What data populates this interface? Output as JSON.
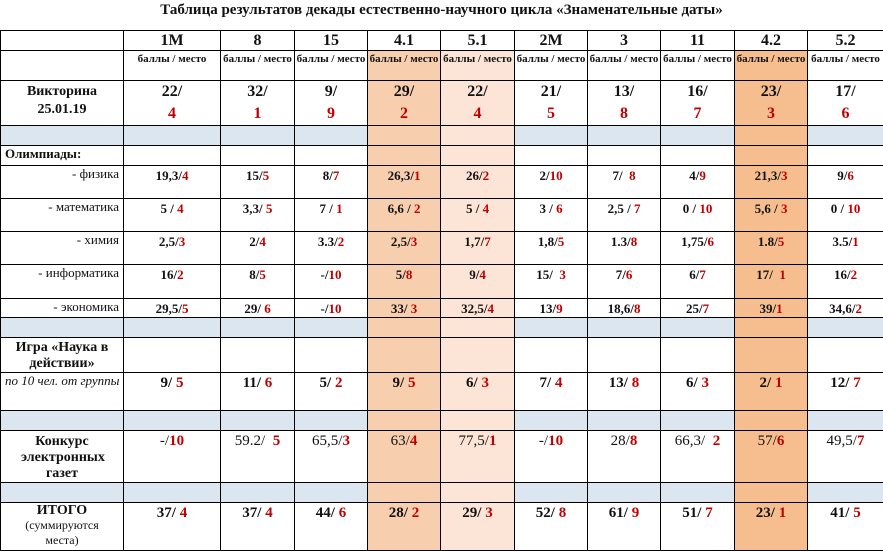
{
  "title": "Таблица результатов декады естественно-научного цикла «Знаменательные даты»",
  "columns": [
    "1М",
    "8",
    "15",
    "4.1",
    "5.1",
    "2М",
    "3",
    "11",
    "4.2",
    "5.2"
  ],
  "subheader": "баллы / место",
  "highlight_colors": {
    "4.1": "#f8cfae",
    "5.1": "#fce4d6",
    "4.2": "#f6be8e",
    "separator": "#dce6f1",
    "place": "#c00000"
  },
  "quiz": {
    "label": "Викторина 25.01.19",
    "values": [
      [
        "22/",
        "4"
      ],
      [
        "32/",
        "1"
      ],
      [
        "9/",
        "9"
      ],
      [
        "29/",
        "2"
      ],
      [
        "22/",
        "4"
      ],
      [
        "21/",
        "5"
      ],
      [
        "13/",
        "8"
      ],
      [
        "16/",
        "7"
      ],
      [
        "23/",
        "3"
      ],
      [
        "17/",
        "6"
      ]
    ]
  },
  "olympiads": {
    "label": "Олимпиады:",
    "subjects": [
      {
        "label": "- физика",
        "values": [
          [
            "19,3/",
            "4"
          ],
          [
            "15/",
            "5"
          ],
          [
            "8/",
            "7"
          ],
          [
            "26,3/",
            "1"
          ],
          [
            "26/",
            "2"
          ],
          [
            "2/",
            "10"
          ],
          [
            "7/  ",
            "8"
          ],
          [
            "4/",
            "9"
          ],
          [
            "21,3/",
            "3"
          ],
          [
            "9/",
            "6"
          ]
        ]
      },
      {
        "label": "- математика",
        "values": [
          [
            "5 / ",
            "4"
          ],
          [
            "3,3/ ",
            "5"
          ],
          [
            "7 / ",
            "1"
          ],
          [
            "6,6 / ",
            "2"
          ],
          [
            "5 / ",
            "4"
          ],
          [
            "3 / ",
            "6"
          ],
          [
            "2,5 / ",
            "7"
          ],
          [
            "0 / ",
            "10"
          ],
          [
            "5,6 / ",
            "3"
          ],
          [
            "0 / ",
            "10"
          ]
        ]
      },
      {
        "label": "- химия",
        "values": [
          [
            "2,5/",
            "3"
          ],
          [
            "2/",
            "4"
          ],
          [
            "3.3/",
            "2"
          ],
          [
            "2,5/",
            "3"
          ],
          [
            "1,7/",
            "7"
          ],
          [
            "1,8/",
            "5"
          ],
          [
            "1.3/",
            "8"
          ],
          [
            "1,75/",
            "6"
          ],
          [
            "1.8/",
            "5"
          ],
          [
            "3.5/",
            "1"
          ]
        ]
      },
      {
        "label": "- информатика",
        "values": [
          [
            "16/",
            "2"
          ],
          [
            "8/",
            "5"
          ],
          [
            "-/",
            "10"
          ],
          [
            "5/",
            "8"
          ],
          [
            "9/",
            "4"
          ],
          [
            "15/  ",
            "3"
          ],
          [
            "7/",
            "6"
          ],
          [
            "6/",
            "7"
          ],
          [
            "17/  ",
            "1"
          ],
          [
            "16/",
            "2"
          ]
        ]
      },
      {
        "label": "- экономика",
        "values": [
          [
            "29,5/",
            "5"
          ],
          [
            "29/ ",
            "6"
          ],
          [
            "-/",
            "10"
          ],
          [
            "33/ ",
            "3"
          ],
          [
            "32,5/",
            "4"
          ],
          [
            "13/",
            "9"
          ],
          [
            "18,6/",
            "8"
          ],
          [
            "25/",
            "7"
          ],
          [
            "39/",
            "1"
          ],
          [
            "34,6/",
            "2"
          ]
        ]
      }
    ]
  },
  "game": {
    "label": "Игра «Наука в действии»",
    "note": "по 10 чел. от группы",
    "values": [
      [
        "9/ ",
        "5"
      ],
      [
        "11/ ",
        "6"
      ],
      [
        "5/ ",
        "2"
      ],
      [
        "9/ ",
        "5"
      ],
      [
        "6/ ",
        "3"
      ],
      [
        "7/ ",
        "4"
      ],
      [
        "13/ ",
        "8"
      ],
      [
        "6/ ",
        "3"
      ],
      [
        "2/ ",
        "1"
      ],
      [
        "12/ ",
        "7"
      ]
    ]
  },
  "newspaper": {
    "label": "Конкурс электронных газет",
    "values": [
      [
        "-/",
        "10"
      ],
      [
        "59.2/  ",
        "5"
      ],
      [
        "65,5/",
        "3"
      ],
      [
        "63/",
        "4"
      ],
      [
        "77,5/",
        "1"
      ],
      [
        "-/",
        "10"
      ],
      [
        "28/",
        "8"
      ],
      [
        "66,3/  ",
        "2"
      ],
      [
        "57/",
        "6"
      ],
      [
        "49,5/",
        "7"
      ]
    ]
  },
  "total": {
    "label": "ИТОГО",
    "note": "(суммируются места)",
    "values": [
      [
        "37/ ",
        "4"
      ],
      [
        "37/ ",
        "4"
      ],
      [
        "44/ ",
        "6"
      ],
      [
        "28/ ",
        "2"
      ],
      [
        "29/ ",
        "3"
      ],
      [
        "52/ ",
        "8"
      ],
      [
        "61/ ",
        "9"
      ],
      [
        "51/ ",
        "7"
      ],
      [
        "23/ ",
        "1"
      ],
      [
        "41/ ",
        "5"
      ]
    ]
  }
}
